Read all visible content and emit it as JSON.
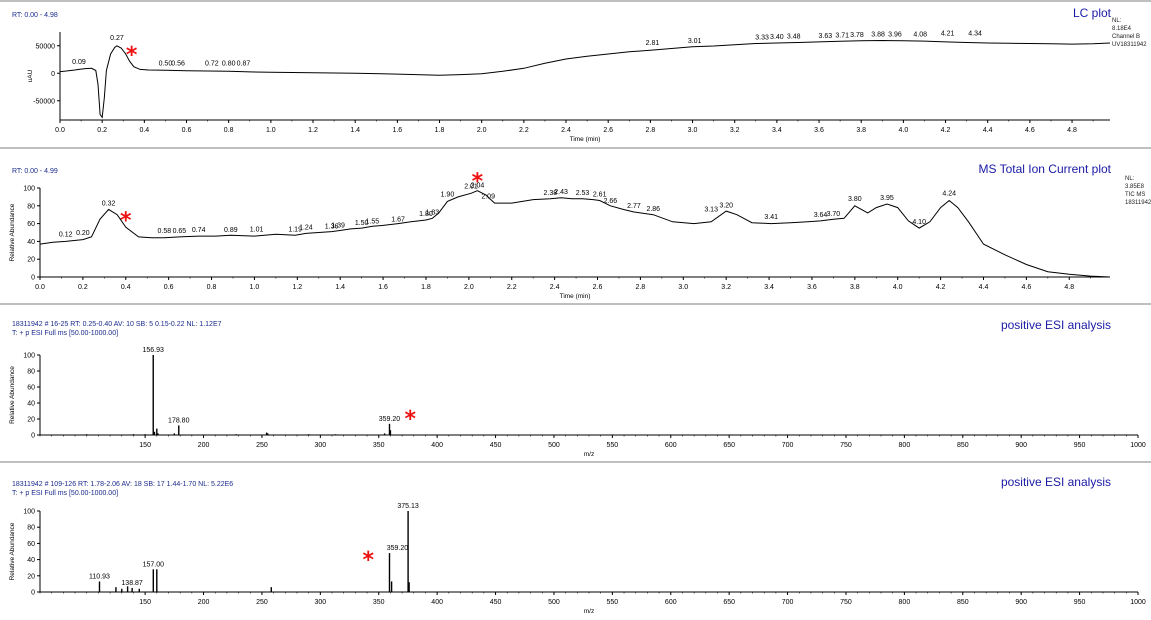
{
  "colors": {
    "trace": "#000000",
    "axis": "#000000",
    "title": "#1a1aa6",
    "header": "#1a2b8c",
    "marker": "#ee1111",
    "baseline": "#2a8a2a"
  },
  "panels": [
    {
      "rt_label": "RT: 0.00 - 4.98",
      "title": "LC plot",
      "nl": [
        "NL:",
        "8.18E4",
        "Channel B",
        "UV18311942"
      ]
    },
    {
      "rt_label": "RT: 0.00 - 4.99",
      "title": "MS Total Ion Current plot",
      "nl": [
        "NL:",
        "3.85E8",
        "TIC MS",
        "18311942"
      ]
    },
    {
      "header1": "18311942 # 16-25   RT: 0.25-0.40   AV: 10   SB: 5 0.15-0.22   NL: 1.12E7",
      "header2": "T: + p ESI Full ms [50.00-1000.00]",
      "title": "positive ESI analysis"
    },
    {
      "header1": "18311942 # 109-126   RT: 1.78-2.06   AV: 18   SB: 17 1.44-1.70   NL: 5.22E6",
      "header2": "T: + p ESI Full ms [50.00-1000.00]",
      "title": "positive ESI analysis"
    }
  ],
  "chart_data": [
    {
      "type": "line",
      "title": "LC plot",
      "xlabel": "Time (min)",
      "ylabel": "uAU",
      "xlim": [
        0,
        4.98
      ],
      "ylim": [
        -85000,
        75000
      ],
      "x_ticks": [
        "0.0",
        "0.2",
        "0.4",
        "0.6",
        "0.8",
        "1.0",
        "1.2",
        "1.4",
        "1.6",
        "1.8",
        "2.0",
        "2.2",
        "2.4",
        "2.6",
        "2.8",
        "3.0",
        "3.2",
        "3.4",
        "3.6",
        "3.8",
        "4.0",
        "4.2",
        "4.4",
        "4.6",
        "4.8"
      ],
      "y_ticks": [
        "50000",
        "0",
        "-50000"
      ],
      "x": [
        0.0,
        0.03,
        0.07,
        0.09,
        0.12,
        0.15,
        0.17,
        0.18,
        0.19,
        0.2,
        0.21,
        0.22,
        0.24,
        0.26,
        0.27,
        0.29,
        0.31,
        0.33,
        0.35,
        0.38,
        0.42,
        0.5,
        0.6,
        0.7,
        0.8,
        0.9,
        1.0,
        1.2,
        1.4,
        1.6,
        1.8,
        1.9,
        2.0,
        2.1,
        2.2,
        2.3,
        2.4,
        2.5,
        2.6,
        2.7,
        2.8,
        2.9,
        3.0,
        3.1,
        3.2,
        3.3,
        3.4,
        3.5,
        3.6,
        3.7,
        3.8,
        3.9,
        4.0,
        4.1,
        4.2,
        4.3,
        4.4,
        4.5,
        4.6,
        4.7,
        4.8,
        4.9,
        4.98
      ],
      "values": [
        3000,
        4000,
        6000,
        7000,
        8500,
        9000,
        5000,
        -20000,
        -75000,
        -80000,
        -45000,
        5000,
        35000,
        47000,
        50000,
        46000,
        36000,
        22000,
        12000,
        7000,
        6000,
        5500,
        4500,
        4000,
        3500,
        2500,
        2000,
        1000,
        0,
        -1500,
        -3500,
        -2500,
        -1000,
        3500,
        9000,
        18000,
        26000,
        31000,
        35000,
        39000,
        42000,
        45000,
        48000,
        49500,
        52000,
        54000,
        55000,
        56000,
        57000,
        58000,
        59000,
        59500,
        59000,
        58500,
        57000,
        56000,
        55000,
        54500,
        54000,
        53500,
        53000,
        53500,
        55000
      ],
      "annotations": [
        "0.09",
        "0.27",
        "0.50",
        "0.56",
        "0.72",
        "0.80",
        "0.87",
        "2.81",
        "3.01",
        "3.33",
        "3.40",
        "3.48",
        "3.63",
        "3.71",
        "3.78",
        "3.88",
        "3.96",
        "4.08",
        "4.21",
        "4.34"
      ]
    },
    {
      "type": "line",
      "title": "MS Total Ion Current plot",
      "xlabel": "Time (min)",
      "ylabel": "Relative Abundance",
      "xlim": [
        0,
        4.99
      ],
      "ylim": [
        0,
        100
      ],
      "x_ticks": [
        "0.0",
        "0.2",
        "0.4",
        "0.6",
        "0.8",
        "1.0",
        "1.2",
        "1.4",
        "1.6",
        "1.8",
        "2.0",
        "2.2",
        "2.4",
        "2.6",
        "2.8",
        "3.0",
        "3.2",
        "3.4",
        "3.6",
        "3.8",
        "4.0",
        "4.2",
        "4.4",
        "4.6",
        "4.8"
      ],
      "y_ticks": [
        "100",
        "80",
        "60",
        "40",
        "20",
        "0"
      ],
      "x": [
        0.0,
        0.06,
        0.12,
        0.16,
        0.2,
        0.24,
        0.28,
        0.32,
        0.36,
        0.4,
        0.46,
        0.52,
        0.58,
        0.65,
        0.74,
        0.82,
        0.89,
        1.0,
        1.1,
        1.19,
        1.24,
        1.3,
        1.36,
        1.39,
        1.45,
        1.5,
        1.55,
        1.6,
        1.67,
        1.73,
        1.8,
        1.83,
        1.86,
        1.9,
        1.95,
        2.01,
        2.04,
        2.08,
        2.12,
        2.2,
        2.3,
        2.38,
        2.43,
        2.48,
        2.53,
        2.58,
        2.61,
        2.66,
        2.72,
        2.77,
        2.86,
        2.95,
        3.05,
        3.13,
        3.2,
        3.25,
        3.32,
        3.41,
        3.5,
        3.58,
        3.64,
        3.7,
        3.75,
        3.8,
        3.86,
        3.9,
        3.95,
        4.0,
        4.05,
        4.1,
        4.15,
        4.2,
        4.24,
        4.28,
        4.33,
        4.4,
        4.5,
        4.6,
        4.7,
        4.8,
        4.9,
        4.99
      ],
      "values": [
        37,
        39,
        40,
        41,
        42,
        45,
        65,
        76,
        70,
        56,
        45,
        44,
        44,
        45,
        46,
        46,
        47,
        46,
        48,
        47,
        49,
        50,
        51,
        52,
        54,
        55,
        57,
        58,
        60,
        62,
        64,
        66,
        72,
        85,
        90,
        94,
        97,
        92,
        83,
        83,
        87,
        88,
        89,
        88,
        88,
        87,
        86,
        80,
        76,
        73,
        70,
        62,
        60,
        62,
        74,
        70,
        61,
        60,
        61,
        62,
        63,
        65,
        66,
        80,
        72,
        78,
        82,
        78,
        63,
        55,
        62,
        78,
        86,
        78,
        62,
        37,
        25,
        14,
        6,
        3,
        1,
        0
      ],
      "annotations": [
        "0.12",
        "0.20",
        "0.32",
        "0.58",
        "0.65",
        "0.74",
        "0.89",
        "1.01",
        "1.19",
        "1.24",
        "1.36",
        "1.39",
        "1.50",
        "1.55",
        "1.67",
        "1.80",
        "1.83",
        "1.90",
        "2.01",
        "2.04",
        "2.09",
        "2.38",
        "2.43",
        "2.53",
        "2.61",
        "2.66",
        "2.77",
        "2.86",
        "3.13",
        "3.20",
        "3.41",
        "3.64",
        "3.70",
        "3.80",
        "3.95",
        "4.10",
        "4.24"
      ]
    },
    {
      "type": "bar",
      "title": "positive ESI analysis",
      "xlabel": "m/z",
      "ylabel": "Relative Abundance",
      "xlim": [
        60,
        1000
      ],
      "ylim": [
        0,
        100
      ],
      "x_ticks": [
        "150",
        "200",
        "250",
        "300",
        "350",
        "400",
        "450",
        "500",
        "550",
        "600",
        "650",
        "700",
        "750",
        "800",
        "850",
        "900",
        "950",
        "1000"
      ],
      "y_ticks": [
        "100",
        "80",
        "60",
        "40",
        "20",
        "0"
      ],
      "x": [
        100,
        140,
        150,
        156.93,
        158,
        160,
        161,
        175,
        178.8,
        228,
        254,
        255,
        290,
        313,
        355,
        359.2,
        360
      ],
      "values": [
        1,
        1,
        1,
        100,
        4,
        8,
        2,
        2,
        12,
        1,
        3,
        2,
        1,
        1,
        2,
        14,
        6
      ],
      "peak_labels": [
        "156.93",
        "178.80",
        "359.20"
      ]
    },
    {
      "type": "bar",
      "title": "positive ESI analysis",
      "xlabel": "m/z",
      "ylabel": "Relative Abundance",
      "xlim": [
        60,
        1000
      ],
      "ylim": [
        0,
        100
      ],
      "x_ticks": [
        "150",
        "200",
        "250",
        "300",
        "350",
        "400",
        "450",
        "500",
        "550",
        "600",
        "650",
        "700",
        "750",
        "800",
        "850",
        "900",
        "950",
        "1000"
      ],
      "y_ticks": [
        "100",
        "80",
        "60",
        "40",
        "20",
        "0"
      ],
      "x": [
        110.93,
        125,
        130,
        135,
        138.87,
        145,
        157,
        160,
        258,
        359.2,
        361,
        375.13,
        376
      ],
      "values": [
        13,
        6,
        4,
        7,
        5,
        4,
        28,
        28,
        6,
        48,
        13,
        100,
        12
      ],
      "peak_labels": [
        "110.93",
        "138.87",
        "157.00",
        "359.20",
        "375.13"
      ]
    }
  ]
}
